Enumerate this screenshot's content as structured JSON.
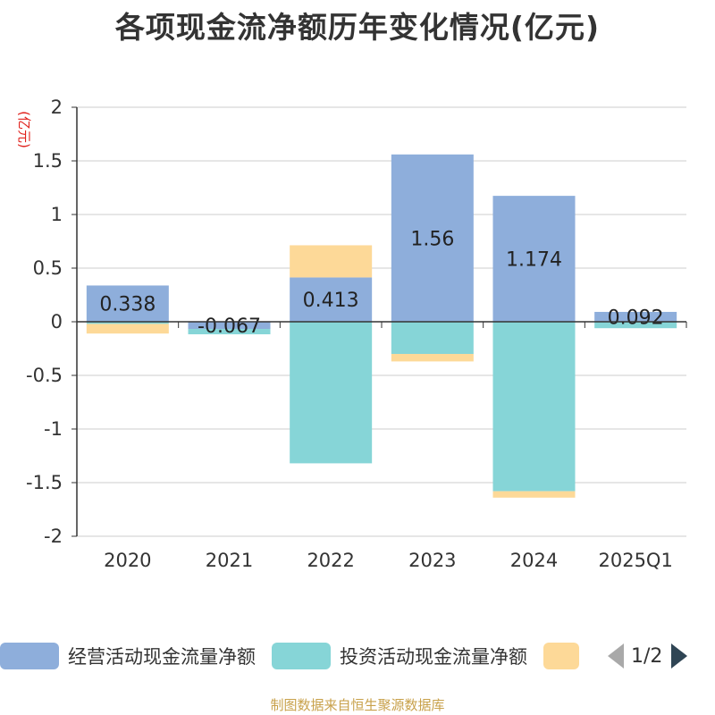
{
  "chart_data": {
    "type": "bar",
    "stacked": true,
    "title": "各项现金流净额历年变化情况(亿元)",
    "ylabel": "(亿元)",
    "xlabel": "",
    "ylim": [
      -2,
      2
    ],
    "yticks": [
      2,
      1.5,
      1,
      0.5,
      0,
      -0.5,
      -1,
      -1.5,
      -2
    ],
    "ytick_labels": [
      "2",
      "1.5",
      "1",
      "0.5",
      "0",
      "-0.5",
      "-1",
      "-1.5",
      "-2"
    ],
    "categories": [
      "2020",
      "2021",
      "2022",
      "2023",
      "2024",
      "2025Q1"
    ],
    "series": [
      {
        "name": "经营活动现金流量净额",
        "color": "#8eaedb",
        "values": [
          0.338,
          -0.067,
          0.413,
          1.56,
          1.174,
          0.092
        ],
        "labels": [
          "0.338",
          "-0.067",
          "0.413",
          "1.56",
          "1.174",
          "0.092"
        ]
      },
      {
        "name": "投资活动现金流量净额",
        "color": "#86d5d7",
        "values": [
          -0.02,
          -0.05,
          -1.32,
          -0.3,
          -1.58,
          -0.06
        ]
      },
      {
        "name": "",
        "color": "#fdd998",
        "values": [
          -0.09,
          0,
          0.3,
          -0.07,
          -0.06,
          0
        ]
      }
    ],
    "grid": true,
    "legend_position": "bottom"
  },
  "legend": {
    "page": "1/2"
  },
  "source": "制图数据来自恒生聚源数据库"
}
